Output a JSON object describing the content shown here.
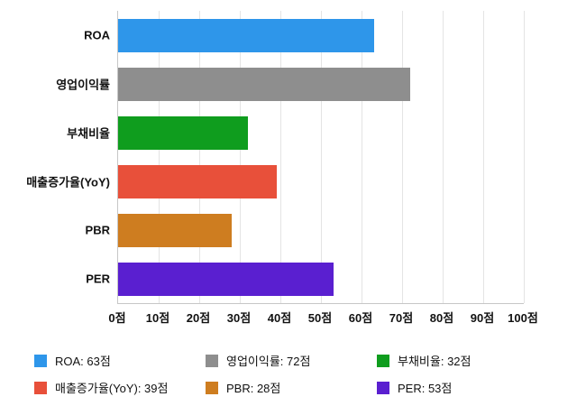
{
  "chart_data": {
    "type": "bar",
    "orientation": "horizontal",
    "title": "",
    "xlabel": "",
    "ylabel": "",
    "unit": "점",
    "xlim": [
      0,
      100
    ],
    "grid": true,
    "categories": [
      "ROA",
      "영업이익률",
      "부채비율",
      "매출증가율(YoY)",
      "PBR",
      "PER"
    ],
    "values": [
      63,
      72,
      32,
      39,
      28,
      53
    ],
    "colors": [
      "#2e96ea",
      "#8e8e8e",
      "#0f9d1e",
      "#e8503a",
      "#ce7d20",
      "#5a1fd0"
    ],
    "x_ticks": [
      "0점",
      "10점",
      "20점",
      "30점",
      "40점",
      "50점",
      "60점",
      "70점",
      "80점",
      "90점",
      "100점"
    ],
    "legend_position": "bottom",
    "legend": [
      {
        "label": "ROA: 63점",
        "color": "#2e96ea"
      },
      {
        "label": "영업이익률: 72점",
        "color": "#8e8e8e"
      },
      {
        "label": "부채비율: 32점",
        "color": "#0f9d1e"
      },
      {
        "label": "매출증가율(YoY): 39점",
        "color": "#e8503a"
      },
      {
        "label": "PBR: 28점",
        "color": "#ce7d20"
      },
      {
        "label": "PER: 53점",
        "color": "#5a1fd0"
      }
    ]
  }
}
